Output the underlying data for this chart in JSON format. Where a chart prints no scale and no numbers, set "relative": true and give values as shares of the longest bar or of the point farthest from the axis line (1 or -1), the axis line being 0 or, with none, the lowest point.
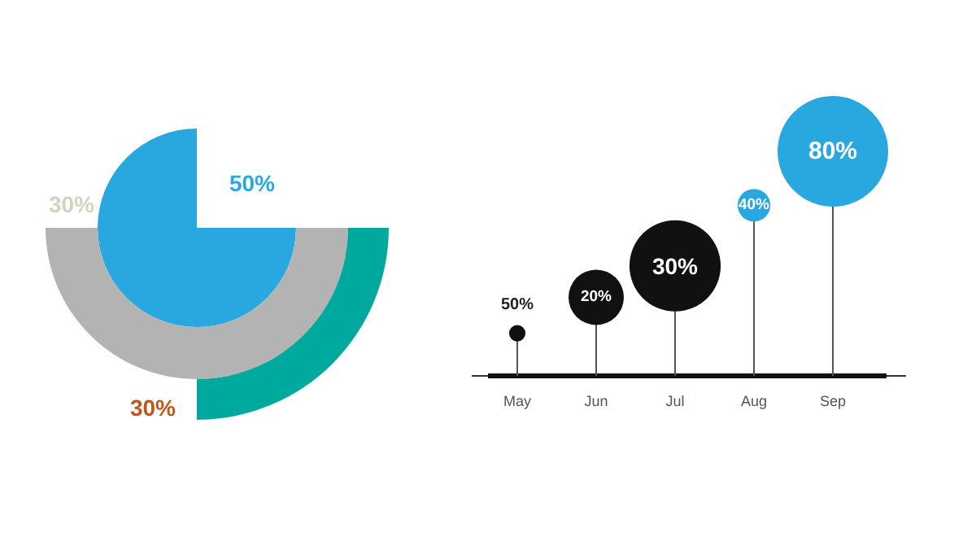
{
  "chart_data": [
    {
      "type": "other",
      "categories": [
        null,
        null,
        null
      ],
      "values": [
        50,
        30,
        30
      ],
      "colors": [
        "#29a8e0",
        "#b3b3b3",
        "#00a99d"
      ],
      "value_labels": [
        "50%",
        "30%",
        "30%"
      ]
    },
    {
      "type": "bubble",
      "relative": true,
      "categories": [
        "May",
        "Jun",
        "Jul",
        "Aug",
        "Sep"
      ],
      "values": [
        0.19,
        0.35,
        0.49,
        0.76,
        1
      ],
      "sizes": [
        0.022,
        0.25,
        0.68,
        0.087,
        1
      ],
      "colors": [
        "#111111",
        "#111111",
        "#111111",
        "#29a8e0",
        "#29a8e0"
      ],
      "annotations": [
        {
          "text": "50%",
          "x": "May",
          "y": 0.19
        },
        {
          "text": "20%",
          "x": "Jun",
          "y": 0.35
        },
        {
          "text": "30%",
          "x": "Jul",
          "y": 0.49
        },
        {
          "text": "40%",
          "x": "Aug",
          "y": 0.76
        },
        {
          "text": "80%",
          "x": "Sep",
          "y": 1
        }
      ]
    }
  ]
}
